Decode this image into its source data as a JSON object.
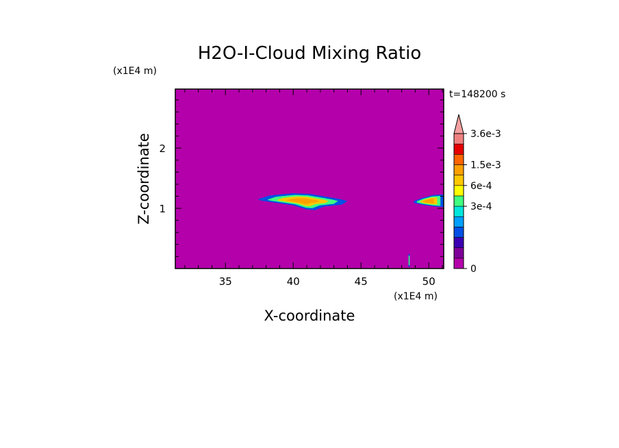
{
  "chart_data": {
    "type": "heatmap",
    "title": "H2O-I-Cloud Mixing Ratio",
    "time_label": "t=148200 s",
    "xlabel": "X-coordinate",
    "ylabel": "Z-coordinate",
    "x_unit": "(x1E4 m)",
    "y_unit": "(x1E4 m)",
    "xlim": [
      31.3,
      51.1
    ],
    "ylim": [
      0.0,
      2.98
    ],
    "x_ticks": [
      35,
      40,
      45,
      50
    ],
    "y_ticks": [
      1,
      2
    ],
    "x_tick_labels": [
      "35",
      "40",
      "45",
      "50"
    ],
    "y_tick_labels": [
      "1",
      "2"
    ],
    "background_color": "#b400aa",
    "colorbar": {
      "levels": [
        0,
        3e-05,
        6e-05,
        0.0001,
        0.00015,
        0.0002,
        0.0003,
        0.0004,
        0.0006,
        0.0009,
        0.0015,
        0.002,
        0.0027,
        0.0036
      ],
      "colors": [
        "#b400aa",
        "#7f0099",
        "#3c00b4",
        "#0050e6",
        "#00a0ff",
        "#00e6dc",
        "#40ff80",
        "#ffff00",
        "#ffc800",
        "#ffa000",
        "#ff6400",
        "#e60000",
        "#f08080"
      ],
      "extend_color": "#f5a0a0",
      "tick_values": [
        0,
        0.0003,
        0.0006,
        0.0015,
        0.0036
      ],
      "tick_labels": [
        "0",
        "3e-4",
        "6e-4",
        "1.5e-3",
        "3.6e-3"
      ]
    },
    "features": [
      {
        "x": [
          37.4,
          38.2,
          39.0,
          40.0,
          41.2,
          42.5,
          43.5,
          44.0,
          43.6,
          42.3,
          41.6,
          41.0,
          40.0,
          38.8,
          37.6
        ],
        "z": [
          1.15,
          1.21,
          1.23,
          1.25,
          1.24,
          1.19,
          1.15,
          1.12,
          1.06,
          1.03,
          0.97,
          0.98,
          1.05,
          1.09,
          1.13
        ],
        "levels": [
          0.0001,
          0.0003,
          0.0006,
          0.0009
        ]
      },
      {
        "x": [
          48.9,
          49.5,
          50.3,
          51.1,
          51.1,
          50.4,
          49.5,
          48.9
        ],
        "z": [
          1.12,
          1.17,
          1.22,
          1.23,
          1.02,
          1.03,
          1.06,
          1.09
        ],
        "levels": [
          0.0001,
          0.0003,
          0.0006,
          0.0009
        ]
      },
      {
        "x": [
          48.5,
          48.6,
          48.6,
          48.5
        ],
        "z": [
          0.03,
          0.03,
          0.24,
          0.24
        ],
        "levels": [
          0.0001,
          0.0003
        ]
      }
    ]
  }
}
